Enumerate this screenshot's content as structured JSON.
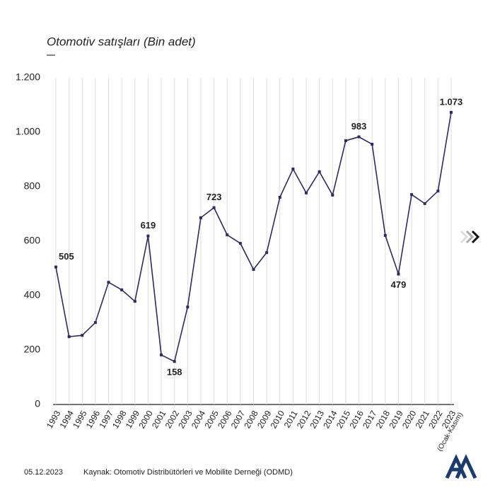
{
  "chart_data": {
    "type": "line",
    "title": "Otomotiv satışları (Bin adet)",
    "date": "05.12.2023",
    "source": "Kaynak: Otomotiv Distribütörleri ve Mobilite Derneği (ODMD)",
    "categories": [
      "1993",
      "1994",
      "1995",
      "1996",
      "1997",
      "1998",
      "1999",
      "2000",
      "2001",
      "2002",
      "2003",
      "2004",
      "2005",
      "2006",
      "2007",
      "2008",
      "2009",
      "2010",
      "2011",
      "2012",
      "2013",
      "2014",
      "2015",
      "2016",
      "2017",
      "2018",
      "2019",
      "2020",
      "2021",
      "2022",
      "2023"
    ],
    "category_note": "(Ocak-Kasım)",
    "series": [
      {
        "color": "#2b2d5e",
        "values": [
          505,
          249,
          254,
          301,
          449,
          421,
          379,
          619,
          182,
          158,
          358,
          686,
          723,
          623,
          592,
          496,
          558,
          761,
          865,
          777,
          855,
          769,
          969,
          983,
          956,
          621,
          479,
          771,
          738,
          784,
          1073
        ],
        "value_labels": [
          "505",
          null,
          null,
          null,
          null,
          null,
          null,
          "619",
          null,
          "158",
          null,
          null,
          "723",
          null,
          null,
          null,
          null,
          null,
          null,
          null,
          null,
          null,
          null,
          "983",
          null,
          null,
          "479",
          null,
          null,
          null,
          "1.073"
        ]
      }
    ],
    "ylim": [
      0,
      1200
    ],
    "yticks": [
      0,
      200,
      400,
      600,
      800,
      {
        "value": 1000,
        "label": "1.000"
      },
      {
        "value": 1200,
        "label": "1.200"
      }
    ],
    "grid": true
  }
}
